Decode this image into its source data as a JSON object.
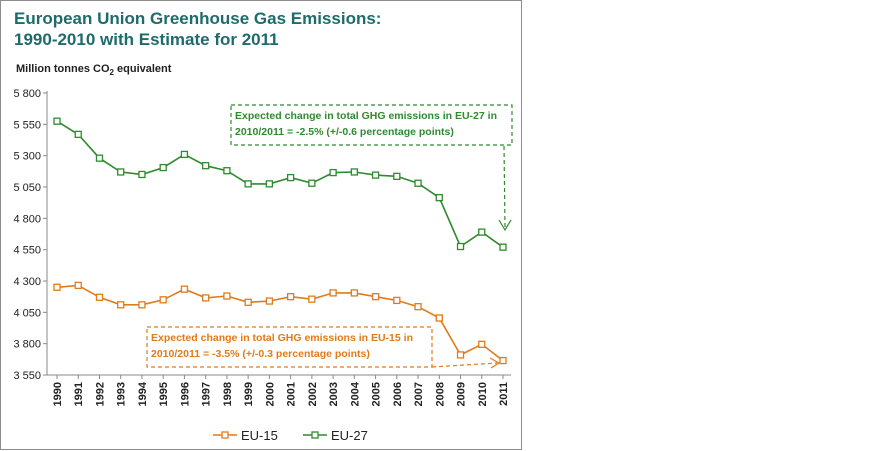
{
  "title_line1": "European Union Greenhouse Gas Emissions:",
  "title_line2": "1990-2010 with Estimate for 2011",
  "ylabel_main": "Million  tonnes CO",
  "ylabel_sub": "2",
  "ylabel_tail": " equivalent",
  "colors": {
    "eu27": "#2e8b2e",
    "eu15": "#e07b1a",
    "title": "#1f6b6b"
  },
  "annotations": {
    "eu27_line1": "Expected change in total GHG emissions in EU-27 in",
    "eu27_line2": "2010/2011 = -2.5% (+/-0.6 percentage points)",
    "eu15_line1": "Expected change in total GHG emissions in EU-15 in",
    "eu15_line2": "2010/2011 = -3.5% (+/-0.3 percentage points)"
  },
  "chart_data": {
    "type": "line",
    "x": [
      "1990",
      "1991",
      "1992",
      "1993",
      "1994",
      "1995",
      "1996",
      "1997",
      "1998",
      "1999",
      "2000",
      "2001",
      "2002",
      "2003",
      "2004",
      "2005",
      "2006",
      "2007",
      "2008",
      "2009",
      "2010",
      "2011"
    ],
    "ylim": [
      3550,
      5800
    ],
    "yticks": [
      "3 550",
      "3 800",
      "4 050",
      "4 300",
      "4 550",
      "4 800",
      "5 050",
      "5 300",
      "5 550",
      "5 800"
    ],
    "ytick_values": [
      3550,
      3800,
      4050,
      4300,
      4550,
      4800,
      5050,
      5300,
      5550,
      5800
    ],
    "grid": false,
    "legend_position": "bottom",
    "series": [
      {
        "name": "EU-15",
        "color": "#e07b1a",
        "values": [
          4250,
          4265,
          4170,
          4110,
          4110,
          4150,
          4235,
          4165,
          4180,
          4130,
          4140,
          4175,
          4155,
          4205,
          4205,
          4175,
          4145,
          4095,
          4005,
          3710,
          3795,
          3665
        ]
      },
      {
        "name": "EU-27",
        "color": "#2e8b2e",
        "values": [
          5575,
          5470,
          5280,
          5170,
          5150,
          5205,
          5310,
          5220,
          5180,
          5075,
          5075,
          5125,
          5080,
          5165,
          5170,
          5145,
          5135,
          5080,
          4965,
          4575,
          4690,
          4570
        ]
      }
    ]
  }
}
